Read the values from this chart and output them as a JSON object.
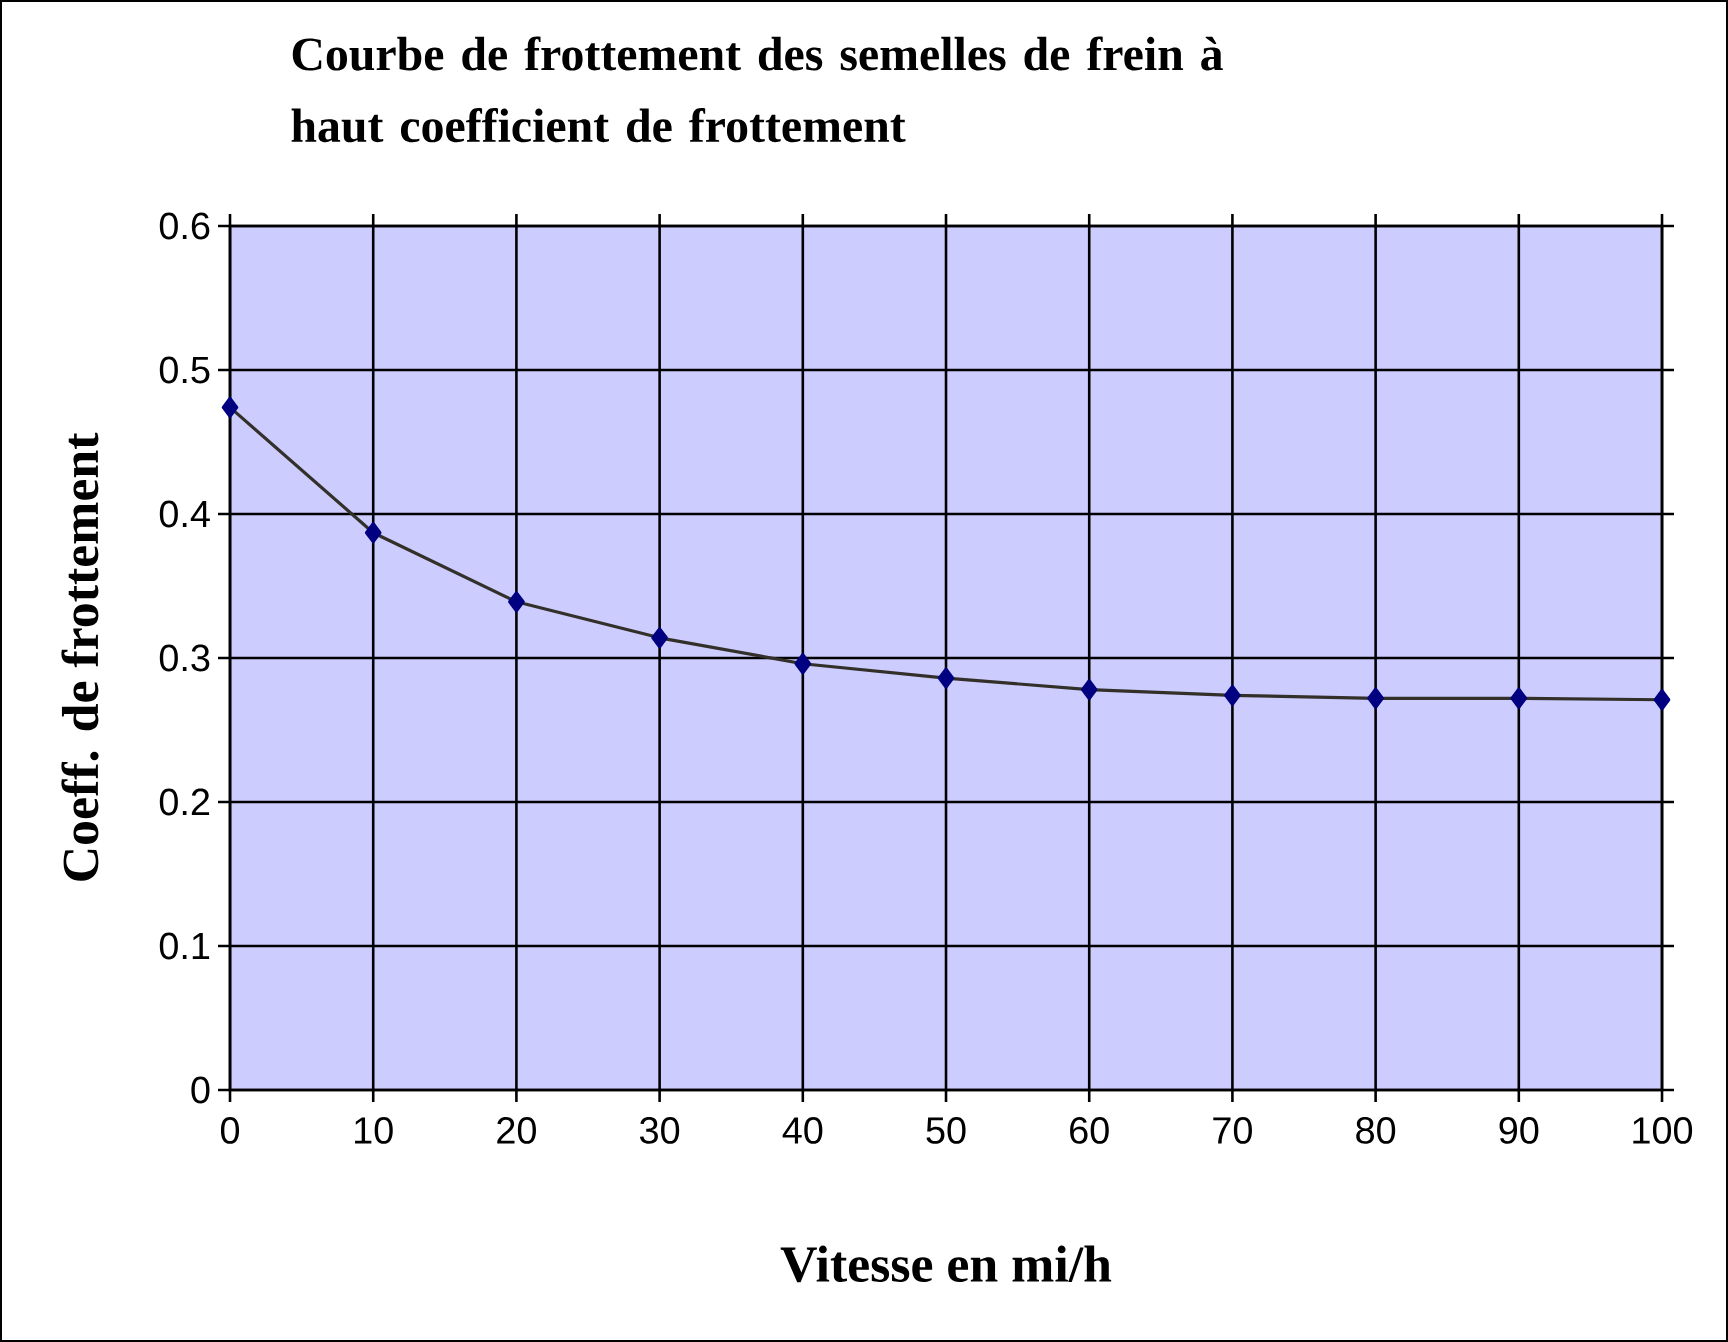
{
  "chart_data": {
    "type": "line",
    "title": "Courbe de frottement des semelles de frein à haut coefficient de frottement",
    "xlabel": "Vitesse en mi/h",
    "ylabel": "Coeff. de frottement",
    "x": [
      0,
      10,
      20,
      30,
      40,
      50,
      60,
      70,
      80,
      90,
      100
    ],
    "series": [
      {
        "color": "#000080",
        "values": [
          0.474,
          0.387,
          0.339,
          0.314,
          0.296,
          0.286,
          0.278,
          0.274,
          0.272,
          0.272,
          0.271
        ]
      }
    ],
    "xlim": [
      0,
      100
    ],
    "ylim": [
      0,
      0.6
    ],
    "xticks": [
      0,
      10,
      20,
      30,
      40,
      50,
      60,
      70,
      80,
      90,
      100
    ],
    "yticks": [
      0,
      0.1,
      0.2,
      0.3,
      0.4,
      0.5,
      0.6
    ],
    "grid": true,
    "marker": "diamond",
    "line_style": "solid"
  }
}
